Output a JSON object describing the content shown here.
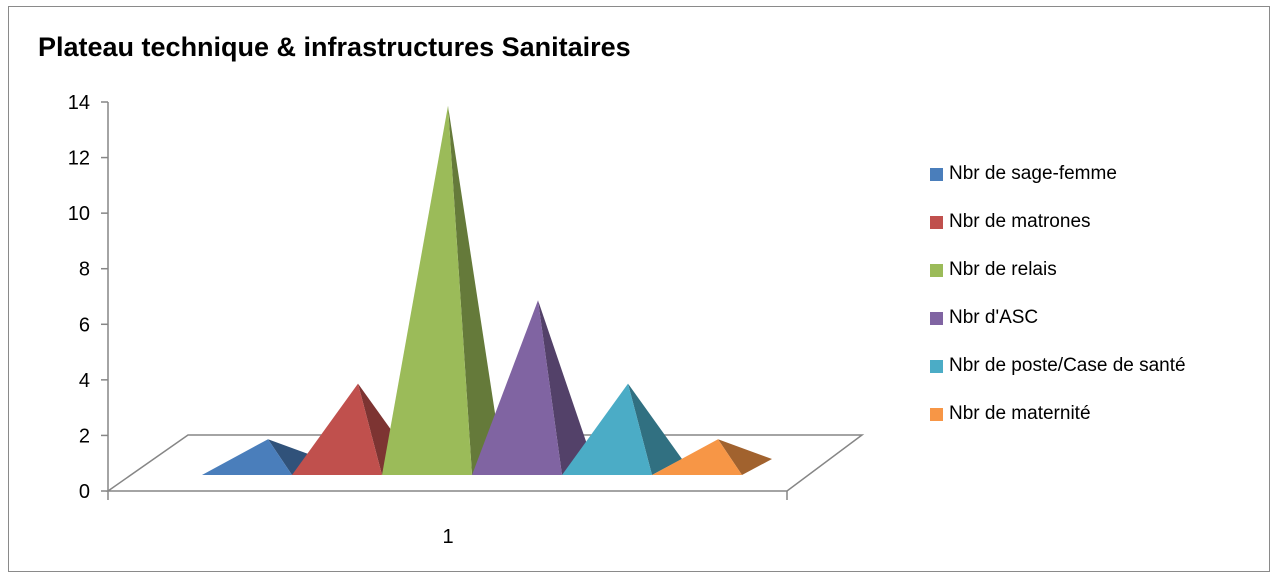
{
  "chart_data": {
    "type": "bar",
    "subtype": "3d-pyramid",
    "title": "Plateau technique & infrastructures Sanitaires",
    "categories": [
      "1"
    ],
    "ylim": [
      0,
      14
    ],
    "yticks": [
      0,
      2,
      4,
      6,
      8,
      10,
      12,
      14
    ],
    "grid": false,
    "legend_position": "right",
    "series": [
      {
        "name": "Nbr de sage-femme",
        "values": [
          1
        ],
        "color": "#4a7ebb"
      },
      {
        "name": "Nbr de matrones",
        "values": [
          3
        ],
        "color": "#c0504d"
      },
      {
        "name": "Nbr de relais",
        "values": [
          13
        ],
        "color": "#9bbb59"
      },
      {
        "name": "Nbr d'ASC",
        "values": [
          6
        ],
        "color": "#8064a2"
      },
      {
        "name": "Nbr de poste/Case de santé",
        "values": [
          3
        ],
        "color": "#4bacc6"
      },
      {
        "name": "Nbr de maternité",
        "values": [
          1
        ],
        "color": "#f79646"
      }
    ]
  }
}
